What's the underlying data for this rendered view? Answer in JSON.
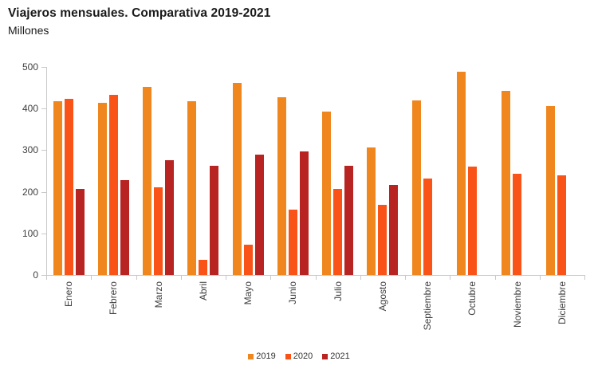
{
  "header": {
    "title": "Viajeros mensuales. Comparativa 2019-2021",
    "subtitle": "Millones"
  },
  "chart_data": {
    "type": "bar",
    "title": "Viajeros mensuales. Comparativa 2019-2021",
    "subtitle": "Millones",
    "xlabel": "",
    "ylabel": "",
    "categories": [
      "Enero",
      "Febrero",
      "Marzo",
      "Abril",
      "Mayo",
      "Junio",
      "Julio",
      "Agosto",
      "Septiembre",
      "Octubre",
      "Noviembre",
      "Diciembre"
    ],
    "series": [
      {
        "name": "2019",
        "color": "#EF871E",
        "values": [
          418,
          413,
          452,
          418,
          461,
          428,
          393,
          306,
          420,
          488,
          443,
          407
        ]
      },
      {
        "name": "2020",
        "color": "#FA5318",
        "values": [
          423,
          433,
          210,
          37,
          72,
          158,
          207,
          168,
          232,
          260,
          244,
          240
        ]
      },
      {
        "name": "2021",
        "color": "#B72422",
        "values": [
          207,
          228,
          276,
          262,
          290,
          296,
          263,
          216,
          null,
          null,
          null,
          null
        ]
      }
    ],
    "ylim": [
      0,
      500
    ],
    "ytick_interval": 100,
    "yticks": [
      0,
      100,
      200,
      300,
      400,
      500
    ],
    "grid": false,
    "legend_position": "bottom",
    "axis_color": "#c9c9c9",
    "tick_label_color": "#404040",
    "background_color": "#ffffff"
  }
}
